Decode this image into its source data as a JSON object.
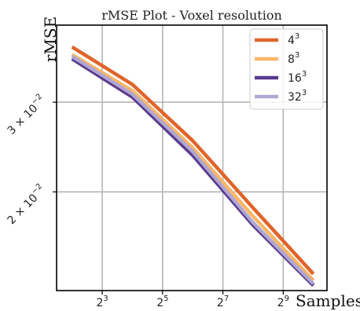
{
  "chart_data": {
    "type": "line",
    "title": "rMSE Plot - Voxel resolution",
    "xlabel": "Samples",
    "ylabel": "rMSE",
    "x_scale": "log2",
    "y_scale": "log",
    "grid": true,
    "legend_position": "top-right",
    "x_ticks": [
      {
        "value": 8,
        "base": "2",
        "exp": "3"
      },
      {
        "value": 32,
        "base": "2",
        "exp": "5"
      },
      {
        "value": 128,
        "base": "2",
        "exp": "7"
      },
      {
        "value": 512,
        "base": "2",
        "exp": "9"
      }
    ],
    "y_ticks": [
      {
        "value": 0.03,
        "label_pre": "3 × 10",
        "label_exp": "−2"
      },
      {
        "value": 0.02,
        "label_pre": "2 × 10",
        "label_exp": "−2"
      }
    ],
    "xlim": [
      2.8,
      1400
    ],
    "ylim": [
      0.0128,
      0.0425
    ],
    "x": [
      4,
      16,
      64,
      256,
      1024
    ],
    "series": [
      {
        "name": "4",
        "name_exp": "3",
        "color": "#e0642a",
        "values": [
          0.0385,
          0.0325,
          0.0252,
          0.0186,
          0.0138
        ]
      },
      {
        "name": "8",
        "name_exp": "3",
        "color": "#fbb665",
        "values": [
          0.0372,
          0.0316,
          0.0244,
          0.0179,
          0.0134
        ]
      },
      {
        "name": "16",
        "name_exp": "3",
        "color": "#593a8e",
        "values": [
          0.0365,
          0.0307,
          0.0236,
          0.0172,
          0.0131
        ]
      },
      {
        "name": "32",
        "name_exp": "3",
        "color": "#b0a7d2",
        "values": [
          0.0369,
          0.0311,
          0.024,
          0.0174,
          0.0132
        ]
      }
    ]
  }
}
